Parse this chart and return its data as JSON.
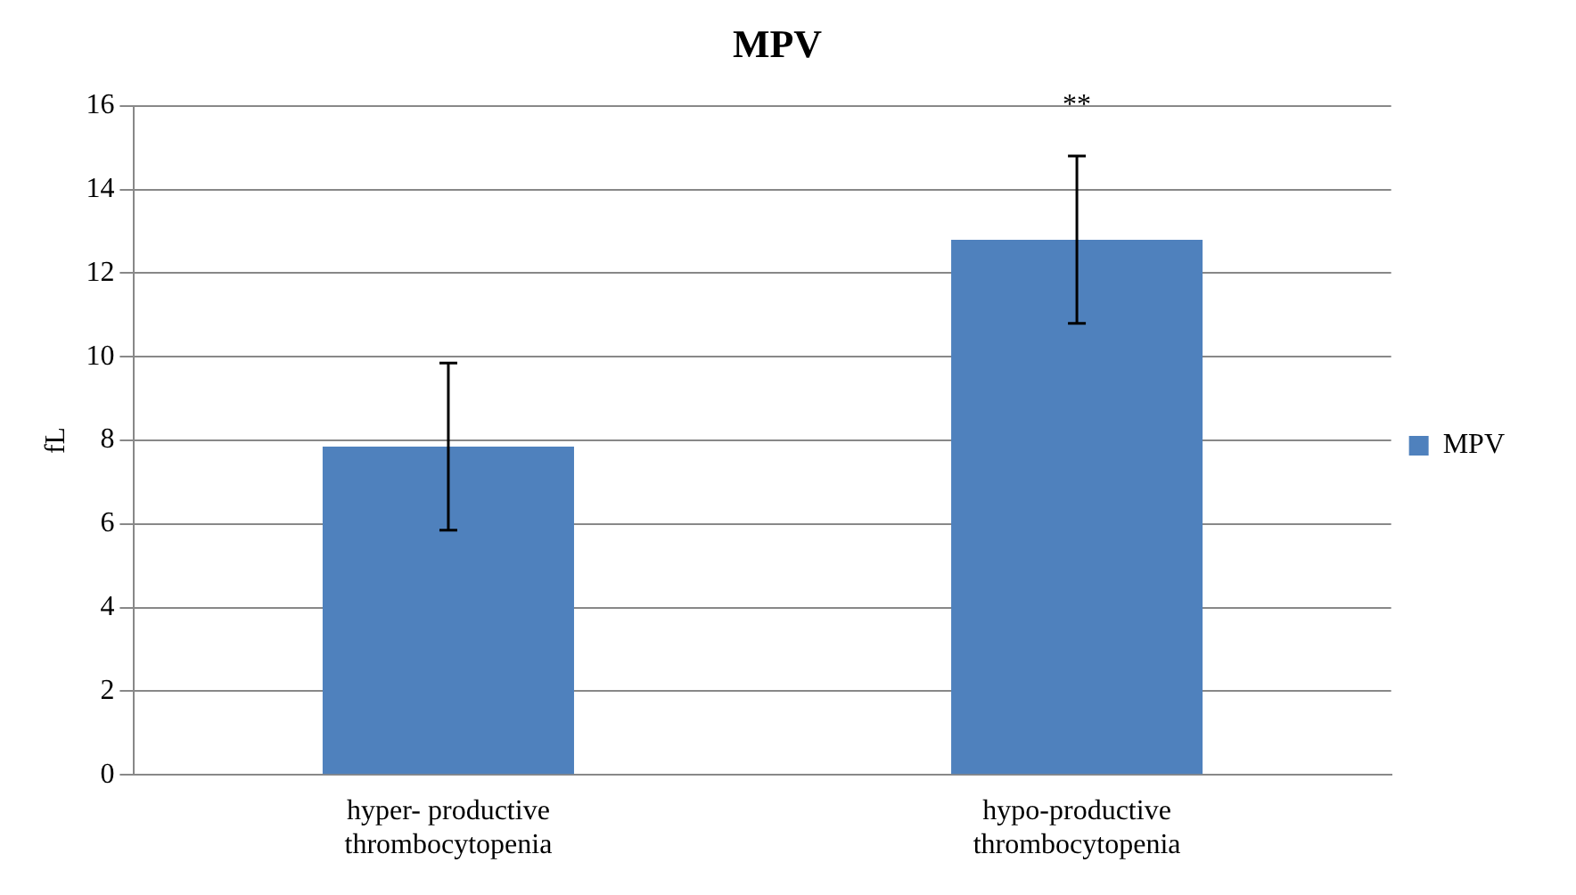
{
  "chart_data": {
    "type": "bar",
    "title": "MPV",
    "ylabel": "fL",
    "categories": [
      "hyper- productive thrombocytopenia",
      "hypo-productive thrombocytopenia"
    ],
    "series": [
      {
        "name": "MPV",
        "color": "#4f81bd",
        "values": [
          7.85,
          12.8
        ],
        "errors": [
          2.0,
          2.0
        ]
      }
    ],
    "ylim": [
      0,
      16
    ],
    "yticks": [
      0,
      2,
      4,
      6,
      8,
      10,
      12,
      14,
      16
    ],
    "grid": "y",
    "legend": "right",
    "annotations": [
      "**"
    ]
  }
}
